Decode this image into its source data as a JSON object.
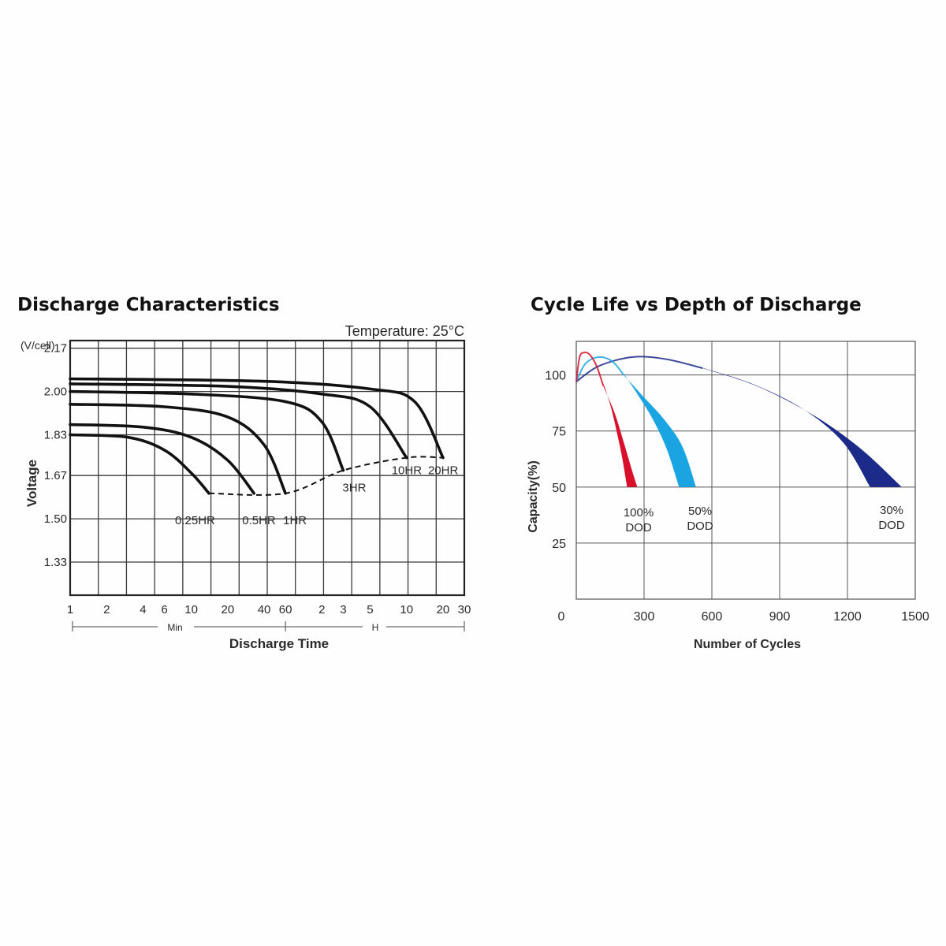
{
  "chart_data": [
    {
      "type": "line",
      "title": "Discharge Characteristics",
      "annotation": "Temperature: 25°C",
      "ylabel": "Voltage",
      "yunit": "(V/cell)",
      "xlabel": "Discharge Time",
      "ytick_labels": [
        "2.17",
        "2.00",
        "1.83",
        "1.67",
        "1.50",
        "1.33"
      ],
      "ytick_values": [
        2.17,
        2.0,
        1.83,
        1.67,
        1.5,
        1.33
      ],
      "ylim": [
        1.2,
        2.2
      ],
      "xtick_labels": [
        "1",
        "2",
        "4",
        "6",
        "10",
        "20",
        "40",
        "60",
        "2",
        "3",
        "5",
        "10",
        "20",
        "30"
      ],
      "xtick_minutes": [
        1,
        2,
        4,
        6,
        10,
        20,
        40,
        60,
        120,
        180,
        300,
        600,
        1200,
        1800
      ],
      "x_scale": "log",
      "x_unit_labels": {
        "minutes": "Min",
        "hours": "H"
      },
      "grid": true,
      "series": [
        {
          "name": "0.25HR",
          "points": [
            [
              1,
              1.83
            ],
            [
              3,
              1.82
            ],
            [
              6,
              1.77
            ],
            [
              10,
              1.68
            ],
            [
              14,
              1.6
            ]
          ]
        },
        {
          "name": "0.5HR",
          "points": [
            [
              1,
              1.87
            ],
            [
              4,
              1.86
            ],
            [
              10,
              1.82
            ],
            [
              20,
              1.73
            ],
            [
              33,
              1.6
            ]
          ]
        },
        {
          "name": "1HR",
          "points": [
            [
              1,
              1.95
            ],
            [
              6,
              1.94
            ],
            [
              20,
              1.9
            ],
            [
              40,
              1.79
            ],
            [
              60,
              1.6
            ]
          ]
        },
        {
          "name": "3HR",
          "points": [
            [
              1,
              2.0
            ],
            [
              10,
              1.99
            ],
            [
              60,
              1.96
            ],
            [
              120,
              1.88
            ],
            [
              180,
              1.69
            ]
          ]
        },
        {
          "name": "10HR",
          "points": [
            [
              1,
              2.03
            ],
            [
              20,
              2.02
            ],
            [
              120,
              1.99
            ],
            [
              300,
              1.94
            ],
            [
              600,
              1.74
            ]
          ]
        },
        {
          "name": "20HR",
          "points": [
            [
              1,
              2.05
            ],
            [
              40,
              2.04
            ],
            [
              300,
              2.01
            ],
            [
              700,
              1.96
            ],
            [
              1200,
              1.74
            ]
          ]
        }
      ],
      "end_voltage_line": [
        [
          14,
          1.6
        ],
        [
          60,
          1.6
        ],
        [
          180,
          1.69
        ],
        [
          600,
          1.74
        ],
        [
          1200,
          1.74
        ]
      ]
    },
    {
      "type": "area",
      "title": "Cycle Life vs Depth of Discharge",
      "ylabel": "Capacity(%)",
      "xlabel": "Number of Cycles",
      "ytick_labels": [
        "100",
        "75",
        "50",
        "25"
      ],
      "ytick_values": [
        100,
        75,
        50,
        25
      ],
      "xtick_labels": [
        "0",
        "300",
        "600",
        "900",
        "1200",
        "1500"
      ],
      "xtick_values": [
        0,
        300,
        600,
        900,
        1200,
        1500
      ],
      "ylim": [
        0,
        115
      ],
      "xlim": [
        0,
        1500
      ],
      "grid": true,
      "series": [
        {
          "name_line1": "100%",
          "name_line2": "DOD",
          "color": "#d8102a",
          "rise": [
            [
              0,
              97
            ],
            [
              15,
              108
            ],
            [
              35,
              110
            ],
            [
              60,
              109
            ],
            [
              90,
              104
            ],
            [
              120,
              95
            ]
          ],
          "upper": [
            [
              120,
              95
            ],
            [
              170,
              83
            ],
            [
              210,
              70
            ],
            [
              245,
              58
            ],
            [
              270,
              50
            ]
          ],
          "lower": [
            [
              125,
              95
            ],
            [
              155,
              85
            ],
            [
              185,
              72
            ],
            [
              205,
              62
            ],
            [
              225,
              50
            ]
          ]
        },
        {
          "name_line1": "50%",
          "name_line2": "DOD",
          "color": "#1aa5e2",
          "rise": [
            [
              0,
              97
            ],
            [
              40,
              105
            ],
            [
              100,
              108
            ],
            [
              160,
              106
            ],
            [
              210,
              100
            ]
          ],
          "upper": [
            [
              210,
              100
            ],
            [
              300,
              90
            ],
            [
              390,
              80
            ],
            [
              470,
              68
            ],
            [
              530,
              50
            ]
          ],
          "lower": [
            [
              215,
              100
            ],
            [
              280,
              90
            ],
            [
              340,
              80
            ],
            [
              400,
              67
            ],
            [
              455,
              50
            ]
          ]
        },
        {
          "name_line1": "30%",
          "name_line2": "DOD",
          "color": "#1c2a8a",
          "rise": [
            [
              0,
              97
            ],
            [
              100,
              104
            ],
            [
              250,
              108
            ],
            [
              400,
              107
            ],
            [
              560,
              103
            ]
          ],
          "upper": [
            [
              560,
              103
            ],
            [
              800,
              95
            ],
            [
              1050,
              82
            ],
            [
              1260,
              67
            ],
            [
              1440,
              50
            ]
          ],
          "lower": [
            [
              565,
              103
            ],
            [
              780,
              96
            ],
            [
              1000,
              85
            ],
            [
              1180,
              70
            ],
            [
              1300,
              50
            ]
          ]
        }
      ]
    }
  ]
}
